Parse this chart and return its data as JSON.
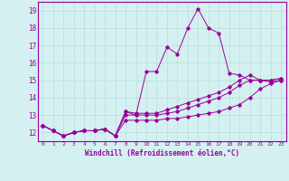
{
  "xlabel": "Windchill (Refroidissement éolien,°C)",
  "background_color": "#d4f0f0",
  "grid_color": "#b8dede",
  "line_color": "#990099",
  "xlim": [
    -0.5,
    23.5
  ],
  "ylim": [
    11.5,
    19.5
  ],
  "xticks": [
    0,
    1,
    2,
    3,
    4,
    5,
    6,
    7,
    8,
    9,
    10,
    11,
    12,
    13,
    14,
    15,
    16,
    17,
    18,
    19,
    20,
    21,
    22,
    23
  ],
  "yticks": [
    12,
    13,
    14,
    15,
    16,
    17,
    18,
    19
  ],
  "series": [
    [
      12.4,
      12.1,
      11.8,
      12.0,
      12.1,
      12.1,
      12.2,
      11.8,
      12.7,
      12.7,
      12.7,
      12.7,
      12.8,
      12.8,
      12.9,
      13.0,
      13.1,
      13.2,
      13.4,
      13.6,
      14.0,
      14.5,
      14.8,
      15.0
    ],
    [
      12.4,
      12.1,
      11.8,
      12.0,
      12.1,
      12.1,
      12.2,
      11.8,
      13.0,
      13.0,
      13.0,
      13.0,
      13.1,
      13.2,
      13.4,
      13.6,
      13.8,
      14.0,
      14.3,
      14.7,
      15.0,
      15.0,
      15.0,
      15.1
    ],
    [
      12.4,
      12.1,
      11.8,
      12.0,
      12.1,
      12.1,
      12.2,
      11.8,
      13.2,
      13.1,
      13.1,
      13.1,
      13.3,
      13.5,
      13.7,
      13.9,
      14.1,
      14.3,
      14.6,
      15.0,
      15.3,
      15.0,
      15.0,
      15.1
    ],
    [
      12.4,
      12.1,
      11.8,
      12.0,
      12.1,
      12.1,
      12.2,
      11.8,
      13.2,
      13.0,
      15.5,
      15.5,
      16.9,
      16.5,
      18.0,
      19.1,
      18.0,
      17.7,
      15.4,
      15.3,
      15.0,
      15.0,
      14.9,
      15.0
    ]
  ]
}
